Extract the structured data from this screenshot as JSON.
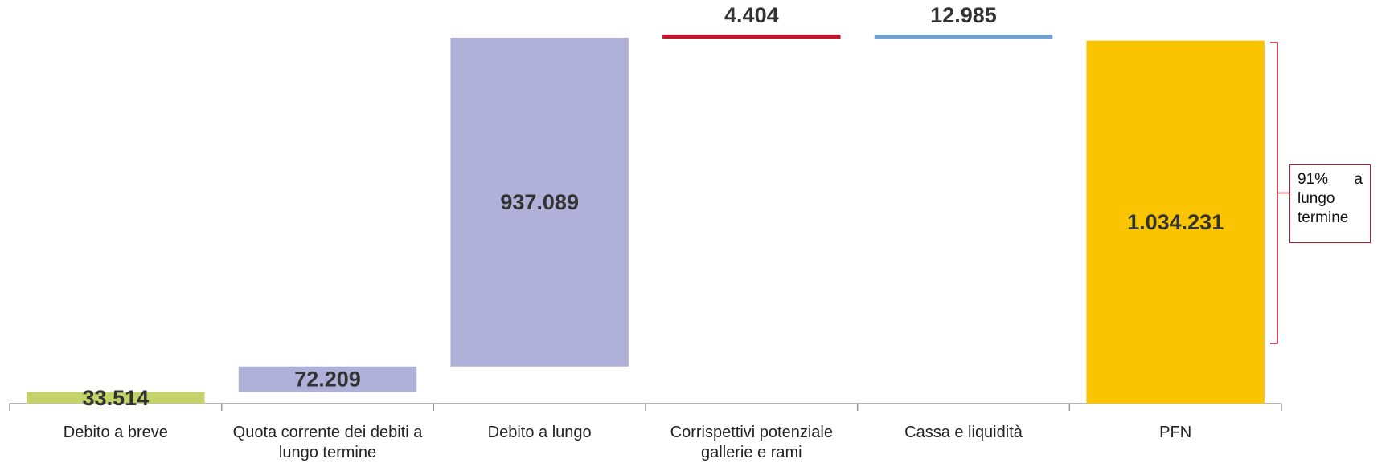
{
  "chart_data": {
    "type": "waterfall",
    "categories": [
      "Debito a breve",
      "Quota corrente dei debiti a lungo termine",
      "Debito a lungo",
      "Corrispettivi potenziale gallerie e rami",
      "Cassa e liquidità",
      "PFN"
    ],
    "values": [
      33514,
      72209,
      937089,
      4404,
      12985,
      1034231
    ],
    "value_labels": [
      "33.514",
      "72.209",
      "937.089",
      "4.404",
      "12.985",
      "1.034.231"
    ],
    "kinds": [
      "increase",
      "increase",
      "increase",
      "increase",
      "decrease",
      "total"
    ],
    "colors": [
      "#c3d36a",
      "#b0b0d8",
      "#b0b0d8",
      "#c0152a",
      "#6fa0d0",
      "#fac400"
    ],
    "ylim": [
      0,
      1150000
    ],
    "annotation": "91% a lungo termine"
  }
}
